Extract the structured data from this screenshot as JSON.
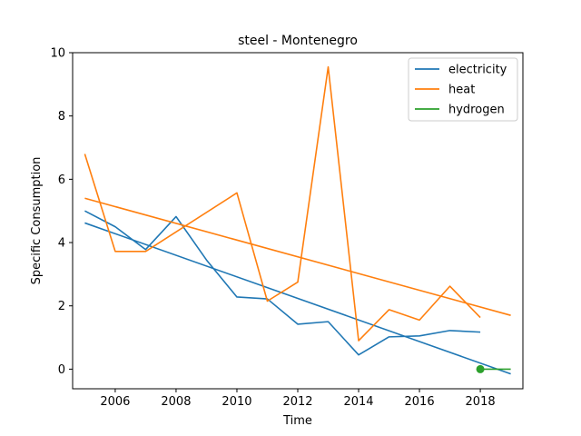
{
  "chart_data": {
    "type": "line",
    "title": "steel - Montenegro",
    "xlabel": "Time",
    "ylabel": "Specific Consumption",
    "xlim": [
      2004.6,
      2019.4
    ],
    "ylim": [
      -0.62,
      10
    ],
    "xticks": [
      2006,
      2008,
      2010,
      2012,
      2014,
      2016,
      2018
    ],
    "yticks": [
      0,
      2,
      4,
      6,
      8,
      10
    ],
    "grid": false,
    "legend_position": "upper right",
    "series": [
      {
        "name": "electricity",
        "color": "#1f77b4",
        "points": [
          [
            2005,
            5.0
          ],
          [
            2006,
            4.5
          ],
          [
            2007,
            3.78
          ],
          [
            2008,
            4.82
          ],
          [
            2009,
            3.45
          ],
          [
            2010,
            2.28
          ],
          [
            2011,
            2.22
          ],
          [
            2012,
            1.42
          ],
          [
            2013,
            1.5
          ],
          [
            2014,
            0.45
          ],
          [
            2015,
            1.02
          ],
          [
            2016,
            1.05
          ],
          [
            2017,
            1.22
          ],
          [
            2018,
            1.17
          ]
        ],
        "trend": [
          [
            2005,
            4.62
          ],
          [
            2019,
            -0.15
          ]
        ]
      },
      {
        "name": "heat",
        "color": "#ff7f0e",
        "points": [
          [
            2005,
            6.8
          ],
          [
            2006,
            3.72
          ],
          [
            2007,
            3.72
          ],
          [
            2010,
            5.57
          ],
          [
            2011,
            2.15
          ],
          [
            2012,
            2.75
          ],
          [
            2013,
            9.55
          ],
          [
            2014,
            0.9
          ],
          [
            2015,
            1.88
          ],
          [
            2016,
            1.55
          ],
          [
            2017,
            2.62
          ],
          [
            2018,
            1.63
          ]
        ],
        "trend": [
          [
            2005,
            5.4
          ],
          [
            2019,
            1.7
          ]
        ]
      },
      {
        "name": "hydrogen",
        "color": "#2ca02c",
        "points": [
          [
            2018,
            0.0
          ]
        ],
        "trend": [
          [
            2018,
            0.0
          ],
          [
            2019,
            0.0
          ]
        ]
      }
    ]
  }
}
